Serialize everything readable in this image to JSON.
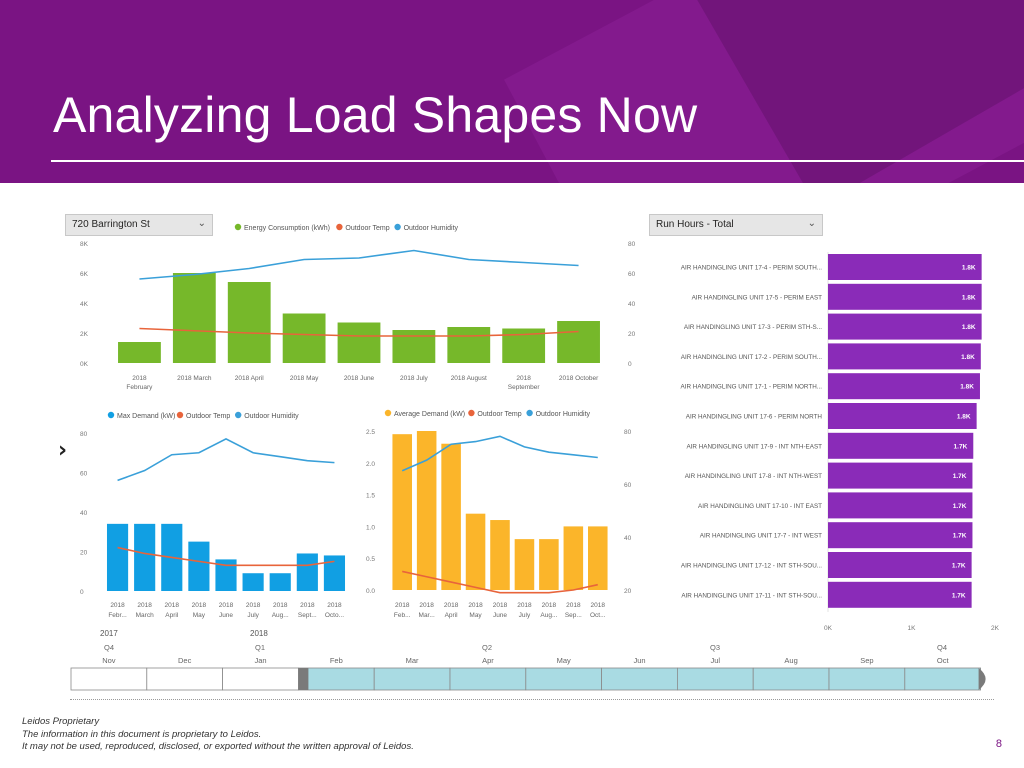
{
  "slide": {
    "title": "Analyzing Load Shapes Now",
    "footer_lines": [
      "Leidos Proprietary",
      "The information in this document is proprietary to Leidos.",
      "It may not be used, reproduced, disclosed, or exported without the written approval of Leidos."
    ],
    "page_number": "8"
  },
  "slicers": {
    "building": "720 Barrington St",
    "runhours": "Run Hours - Total"
  },
  "colors": {
    "header": "#7a1483",
    "energy": "#76b82a",
    "demand": "#119fe3",
    "average": "#fbb52a",
    "temp": "#e8643b",
    "humidity": "#3aa0d9",
    "bars_purple": "#8a2bb8",
    "timeline": "#a9dbe3"
  },
  "chart_data": [
    {
      "type": "bar",
      "legend": [
        "Energy Consumption (kWh)",
        "Outdoor Temp",
        "Outdoor Humidity"
      ],
      "categories": [
        "2018 February",
        "2018 March",
        "2018 April",
        "2018 May",
        "2018 June",
        "2018 July",
        "2018 August",
        "2018 September",
        "2018 October"
      ],
      "category_labels": [
        [
          "2018",
          "February"
        ],
        [
          "2018 March"
        ],
        [
          "2018 April"
        ],
        [
          "2018 May"
        ],
        [
          "2018 June"
        ],
        [
          "2018 July"
        ],
        [
          "2018 August"
        ],
        [
          "2018",
          "September"
        ],
        [
          "2018 October"
        ]
      ],
      "series": [
        {
          "name": "Energy Consumption (kWh)",
          "values": [
            1400,
            6000,
            5400,
            3300,
            2700,
            2200,
            2400,
            2300,
            2800
          ]
        },
        {
          "name": "Outdoor Temp",
          "values": [
            23,
            21.5,
            20,
            19,
            18,
            18,
            18,
            19,
            21
          ]
        },
        {
          "name": "Outdoor Humidity",
          "values": [
            56,
            59,
            63,
            69,
            70,
            75,
            69,
            67,
            65
          ]
        }
      ],
      "ylim": [
        0,
        8000
      ],
      "y2lim": [
        0,
        80
      ],
      "y_ticks": [
        "0K",
        "2K",
        "4K",
        "6K",
        "8K"
      ],
      "y2_ticks": [
        "0",
        "20",
        "40",
        "60",
        "80"
      ],
      "legend_position": "top"
    },
    {
      "type": "bar",
      "legend": [
        "Max Demand (kW)",
        "Outdoor Temp",
        "Outdoor Humidity"
      ],
      "category_labels": [
        [
          "2018",
          "Febr..."
        ],
        [
          "2018",
          "March"
        ],
        [
          "2018",
          "April"
        ],
        [
          "2018",
          "May"
        ],
        [
          "2018",
          "June"
        ],
        [
          "2018",
          "July"
        ],
        [
          "2018",
          "Aug..."
        ],
        [
          "2018",
          "Sept..."
        ],
        [
          "2018",
          "Octo..."
        ]
      ],
      "series": [
        {
          "name": "Max Demand (kW)",
          "values": [
            34,
            34,
            34,
            25,
            16,
            9,
            9,
            19,
            18
          ]
        },
        {
          "name": "Outdoor Temp",
          "values": [
            22,
            19,
            17,
            15,
            13,
            13,
            13,
            13,
            15
          ]
        },
        {
          "name": "Outdoor Humidity",
          "values": [
            56,
            61,
            69,
            70,
            77,
            70,
            68,
            66,
            65
          ]
        }
      ],
      "ylim": [
        0,
        80
      ],
      "y_ticks": [
        "0",
        "20",
        "40",
        "60",
        "80"
      ],
      "legend_position": "top"
    },
    {
      "type": "bar",
      "legend": [
        "Average Demand (kW)",
        "Outdoor Temp",
        "Outdoor Humidity"
      ],
      "category_labels": [
        [
          "2018",
          "Feb..."
        ],
        [
          "2018",
          "Mar..."
        ],
        [
          "2018",
          "April"
        ],
        [
          "2018",
          "May"
        ],
        [
          "2018",
          "June"
        ],
        [
          "2018",
          "July"
        ],
        [
          "2018",
          "Aug..."
        ],
        [
          "2018",
          "Sep..."
        ],
        [
          "2018",
          "Oct..."
        ]
      ],
      "series": [
        {
          "name": "Average Demand (kW)",
          "values": [
            2.45,
            2.5,
            2.3,
            1.2,
            1.1,
            0.8,
            0.8,
            1.0,
            1.0
          ]
        },
        {
          "name": "Outdoor Temp",
          "values": [
            27,
            25,
            23,
            21,
            19,
            19,
            19,
            20,
            22
          ]
        },
        {
          "name": "Outdoor Humidity",
          "values": [
            65,
            69,
            75,
            76,
            78,
            74,
            72,
            71,
            70
          ]
        }
      ],
      "ylim": [
        0,
        2.5
      ],
      "y2lim": [
        20,
        80
      ],
      "y_ticks": [
        "0.0",
        "0.5",
        "1.0",
        "1.5",
        "2.0",
        "2.5"
      ],
      "y2_ticks": [
        "20",
        "40",
        "60",
        "80"
      ],
      "legend_position": "top"
    },
    {
      "type": "bar",
      "orientation": "horizontal",
      "categories": [
        "AIR HANDINGLING UNIT 17-4 - PERIM SOUTH...",
        "AIR HANDINGLING UNIT 17-5 - PERIM EAST",
        "AIR HANDINGLING UNIT 17-3 - PERIM STH-S...",
        "AIR HANDINGLING UNIT 17-2 - PERIM SOUTH...",
        "AIR HANDINGLING UNIT 17-1 - PERIM NORTH...",
        "AIR HANDINGLING UNIT 17-6 - PERIM NORTH",
        "AIR HANDINGLING UNIT 17-9 - INT NTH-EAST",
        "AIR HANDINGLING UNIT 17-8 - INT NTH-WEST",
        "AIR HANDINGLING UNIT 17-10 - INT EAST",
        "AIR HANDINGLING UNIT 17-7 - INT WEST",
        "AIR HANDINGLING UNIT 17-12 - INT STH-SOU...",
        "AIR HANDINGLING UNIT 17-11 - INT STH-SOU..."
      ],
      "values": [
        1840,
        1840,
        1840,
        1830,
        1820,
        1780,
        1740,
        1730,
        1730,
        1730,
        1720,
        1720
      ],
      "data_labels": [
        "1.8K",
        "1.8K",
        "1.8K",
        "1.8K",
        "1.8K",
        "1.8K",
        "1.7K",
        "1.7K",
        "1.7K",
        "1.7K",
        "1.7K",
        "1.7K"
      ],
      "xlim": [
        0,
        2000
      ],
      "x_ticks": [
        "0K",
        "1K",
        "2K"
      ]
    }
  ],
  "timeline": {
    "years": [
      "2017",
      "2018"
    ],
    "quarters": [
      "Q4",
      "Q1",
      "Q2",
      "Q3",
      "Q4"
    ],
    "months": [
      "Nov",
      "Dec",
      "Jan",
      "Feb",
      "Mar",
      "Apr",
      "May",
      "Jun",
      "Jul",
      "Aug",
      "Sep",
      "Oct"
    ],
    "selected_range": [
      "Feb",
      "Oct"
    ]
  }
}
